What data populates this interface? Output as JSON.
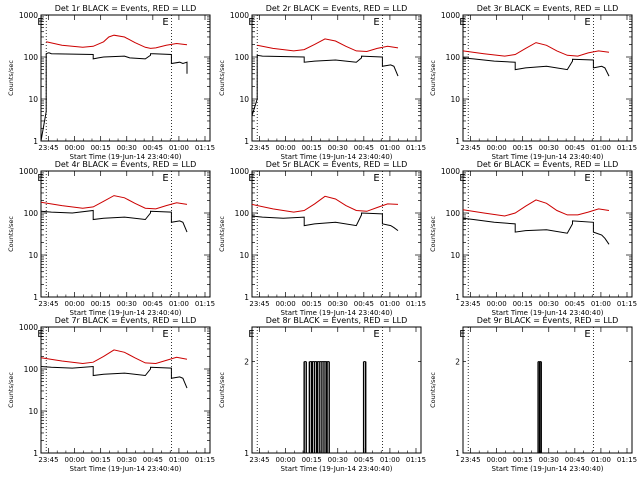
{
  "chart_data": [
    {
      "type": "line",
      "title": "Det 1r BLACK = Events, RED = LLD",
      "xlabel": "Start Time (19-Jun-14 23:40:40)",
      "ylabel": "Counts/sec",
      "xticks": [
        "23:45",
        "00:00",
        "00:15",
        "00:30",
        "00:45",
        "01:00",
        "01:15"
      ],
      "yticks": [
        "1",
        "10",
        "100",
        "1000"
      ],
      "yscale": "log",
      "ylim": [
        1,
        1000
      ],
      "markers": [
        {
          "label": "E",
          "t": 0.05
        },
        {
          "label": "E",
          "t": 1.25
        }
      ],
      "series": [
        {
          "color": "#000000",
          "x": [
            0.0,
            0.05,
            0.05,
            0.07,
            0.08,
            0.1,
            0.5,
            0.5,
            0.55,
            0.6,
            0.8,
            0.85,
            1.0,
            1.05,
            1.05,
            1.08,
            1.25,
            1.25,
            1.33,
            1.36,
            1.4,
            1.4
          ],
          "y": [
            1,
            5,
            120,
            125,
            125,
            120,
            115,
            90,
            95,
            100,
            105,
            95,
            90,
            110,
            120,
            120,
            115,
            70,
            75,
            70,
            75,
            40
          ]
        },
        {
          "color": "#cc0000",
          "x": [
            0.05,
            0.2,
            0.4,
            0.5,
            0.6,
            0.65,
            0.7,
            0.8,
            0.9,
            1.0,
            1.05,
            1.1,
            1.2,
            1.3,
            1.4
          ],
          "y": [
            230,
            190,
            170,
            180,
            230,
            300,
            330,
            300,
            220,
            170,
            160,
            165,
            190,
            210,
            195
          ]
        }
      ]
    },
    {
      "type": "line",
      "title": "Det 2r BLACK = Events, RED = LLD",
      "xlabel": "Start Time (19-Jun-14 23:40:40)",
      "ylabel": "Counts/sec",
      "xticks": [
        "23:45",
        "00:00",
        "00:15",
        "00:30",
        "00:45",
        "01:00",
        "01:15"
      ],
      "yticks": [
        "1",
        "10",
        "100",
        "1000"
      ],
      "yscale": "log",
      "ylim": [
        1,
        1000
      ],
      "markers": [
        {
          "label": "E",
          "t": 0.05
        },
        {
          "label": "E",
          "t": 1.25
        }
      ],
      "series": [
        {
          "color": "#000000",
          "x": [
            0.0,
            0.05,
            0.05,
            0.1,
            0.5,
            0.5,
            0.6,
            0.8,
            1.0,
            1.05,
            1.05,
            1.25,
            1.25,
            1.33,
            1.36,
            1.4
          ],
          "y": [
            4,
            10,
            110,
            105,
            100,
            75,
            80,
            85,
            75,
            95,
            105,
            100,
            60,
            65,
            60,
            35
          ]
        },
        {
          "color": "#cc0000",
          "x": [
            0.05,
            0.2,
            0.4,
            0.5,
            0.6,
            0.7,
            0.8,
            0.9,
            1.0,
            1.1,
            1.2,
            1.3,
            1.4
          ],
          "y": [
            190,
            160,
            140,
            150,
            200,
            270,
            240,
            180,
            140,
            135,
            160,
            180,
            165
          ]
        }
      ]
    },
    {
      "type": "line",
      "title": "Det 3r BLACK = Events, RED = LLD",
      "xlabel": "Start Time (19-Jun-14 23:40:40)",
      "ylabel": "Counts/sec",
      "xticks": [
        "23:45",
        "00:00",
        "00:15",
        "00:30",
        "00:45",
        "01:00",
        "01:15"
      ],
      "yticks": [
        "1",
        "10",
        "100",
        "1000"
      ],
      "yscale": "log",
      "ylim": [
        1,
        1000
      ],
      "markers": [
        {
          "label": "E",
          "t": 0.05
        },
        {
          "label": "E",
          "t": 1.25
        }
      ],
      "series": [
        {
          "color": "#000000",
          "x": [
            0.0,
            0.1,
            0.3,
            0.5,
            0.5,
            0.6,
            0.8,
            1.0,
            1.05,
            1.05,
            1.25,
            1.25,
            1.33,
            1.36,
            1.4
          ],
          "y": [
            95,
            90,
            80,
            75,
            50,
            55,
            60,
            50,
            80,
            88,
            85,
            55,
            60,
            55,
            35
          ]
        },
        {
          "color": "#cc0000",
          "x": [
            0.0,
            0.2,
            0.4,
            0.5,
            0.6,
            0.7,
            0.8,
            0.9,
            1.0,
            1.1,
            1.2,
            1.3,
            1.4
          ],
          "y": [
            140,
            120,
            105,
            115,
            160,
            220,
            190,
            140,
            110,
            105,
            125,
            140,
            130
          ]
        }
      ]
    },
    {
      "type": "line",
      "title": "Det 4r BLACK = Events, RED = LLD",
      "xlabel": "Start Time (19-Jun-14 23:40:40)",
      "ylabel": "Counts/sec",
      "xticks": [
        "23:45",
        "00:00",
        "00:15",
        "00:30",
        "00:45",
        "01:00",
        "01:15"
      ],
      "yticks": [
        "1",
        "10",
        "100",
        "1000"
      ],
      "yscale": "log",
      "ylim": [
        1,
        1000
      ],
      "markers": [
        {
          "label": "E",
          "t": 0.05
        },
        {
          "label": "E",
          "t": 1.25
        }
      ],
      "series": [
        {
          "color": "#000000",
          "x": [
            0.0,
            0.1,
            0.3,
            0.5,
            0.5,
            0.6,
            0.8,
            1.0,
            1.05,
            1.05,
            1.25,
            1.25,
            1.33,
            1.36,
            1.4
          ],
          "y": [
            110,
            105,
            100,
            115,
            70,
            75,
            80,
            70,
            100,
            110,
            105,
            60,
            65,
            60,
            35
          ]
        },
        {
          "color": "#cc0000",
          "x": [
            0.0,
            0.2,
            0.4,
            0.5,
            0.6,
            0.7,
            0.8,
            0.9,
            1.0,
            1.1,
            1.2,
            1.3,
            1.4
          ],
          "y": [
            180,
            150,
            130,
            140,
            190,
            260,
            230,
            170,
            130,
            125,
            150,
            175,
            160
          ]
        }
      ]
    },
    {
      "type": "line",
      "title": "Det 5r BLACK = Events, RED = LLD",
      "xlabel": "Start Time (19-Jun-14 23:40:40)",
      "ylabel": "Counts/sec",
      "xticks": [
        "23:45",
        "00:00",
        "00:15",
        "00:30",
        "00:45",
        "01:00",
        "01:15"
      ],
      "yticks": [
        "1",
        "10",
        "100",
        "1000"
      ],
      "yscale": "log",
      "ylim": [
        1,
        1000
      ],
      "markers": [
        {
          "label": "E",
          "t": 0.05
        },
        {
          "label": "E",
          "t": 1.25
        }
      ],
      "series": [
        {
          "color": "#000000",
          "x": [
            0.0,
            0.1,
            0.3,
            0.5,
            0.5,
            0.6,
            0.8,
            1.0,
            1.05,
            1.05,
            1.25,
            1.25,
            1.33,
            1.36,
            1.4
          ],
          "y": [
            85,
            80,
            75,
            80,
            50,
            55,
            60,
            50,
            90,
            100,
            95,
            55,
            50,
            45,
            38
          ]
        },
        {
          "color": "#cc0000",
          "x": [
            0.0,
            0.2,
            0.4,
            0.5,
            0.6,
            0.7,
            0.8,
            0.9,
            1.0,
            1.1,
            1.2,
            1.3,
            1.4
          ],
          "y": [
            160,
            125,
            105,
            115,
            165,
            250,
            215,
            150,
            115,
            110,
            135,
            165,
            160
          ]
        }
      ]
    },
    {
      "type": "line",
      "title": "Det 6r BLACK = Events, RED = LLD",
      "xlabel": "Start Time (19-Jun-14 23:40:40)",
      "ylabel": "Counts/sec",
      "xticks": [
        "23:45",
        "00:00",
        "00:15",
        "00:30",
        "00:45",
        "01:00",
        "01:15"
      ],
      "yticks": [
        "1",
        "10",
        "100",
        "1000"
      ],
      "yscale": "log",
      "ylim": [
        1,
        1000
      ],
      "markers": [
        {
          "label": "E",
          "t": 0.05
        },
        {
          "label": "E",
          "t": 1.25
        }
      ],
      "series": [
        {
          "color": "#000000",
          "x": [
            0.0,
            0.1,
            0.3,
            0.5,
            0.5,
            0.6,
            0.8,
            1.0,
            1.05,
            1.05,
            1.25,
            1.25,
            1.33,
            1.36,
            1.4
          ],
          "y": [
            75,
            70,
            60,
            55,
            35,
            38,
            40,
            33,
            55,
            65,
            60,
            35,
            30,
            25,
            18
          ]
        },
        {
          "color": "#cc0000",
          "x": [
            0.0,
            0.2,
            0.4,
            0.5,
            0.6,
            0.7,
            0.8,
            0.9,
            1.0,
            1.1,
            1.2,
            1.3,
            1.4
          ],
          "y": [
            120,
            100,
            85,
            100,
            145,
            205,
            170,
            115,
            90,
            90,
            105,
            125,
            115
          ]
        }
      ]
    },
    {
      "type": "line",
      "title": "Det 7r BLACK = Events, RED = LLD",
      "xlabel": "Start Time (19-Jun-14 23:40:40)",
      "ylabel": "Counts/sec",
      "xticks": [
        "23:45",
        "00:00",
        "00:15",
        "00:30",
        "00:45",
        "01:00",
        "01:15"
      ],
      "yticks": [
        "1",
        "10",
        "100",
        "1000"
      ],
      "yscale": "log",
      "ylim": [
        1,
        1000
      ],
      "markers": [
        {
          "label": "E",
          "t": 0.05
        },
        {
          "label": "E",
          "t": 1.25
        }
      ],
      "series": [
        {
          "color": "#000000",
          "x": [
            0.0,
            0.1,
            0.3,
            0.5,
            0.5,
            0.6,
            0.8,
            1.0,
            1.05,
            1.05,
            1.25,
            1.25,
            1.33,
            1.36,
            1.4
          ],
          "y": [
            115,
            110,
            105,
            115,
            70,
            75,
            80,
            70,
            100,
            110,
            105,
            60,
            65,
            60,
            35
          ]
        },
        {
          "color": "#cc0000",
          "x": [
            0.0,
            0.2,
            0.4,
            0.5,
            0.6,
            0.7,
            0.8,
            0.9,
            1.0,
            1.1,
            1.2,
            1.3,
            1.4
          ],
          "y": [
            185,
            155,
            135,
            145,
            200,
            285,
            250,
            185,
            140,
            135,
            160,
            190,
            170
          ]
        }
      ]
    },
    {
      "type": "line",
      "title": "Det 8r BLACK = Events, RED = LLD",
      "xlabel": "Start Time (19-Jun-14 23:40:40)",
      "ylabel": "Counts/sec",
      "xticks": [
        "23:45",
        "00:00",
        "00:15",
        "00:30",
        "00:45",
        "01:00",
        "01:15"
      ],
      "yticks": [
        "1",
        "2"
      ],
      "yscale": "log",
      "ylim": [
        1,
        2.6
      ],
      "markers": [
        {
          "label": "E",
          "t": 0.05
        },
        {
          "label": "E",
          "t": 1.25
        }
      ],
      "bursts": [
        0.5,
        0.52,
        0.55,
        0.57,
        0.58,
        0.6,
        0.62,
        0.63,
        0.65,
        0.67,
        0.69,
        0.71,
        0.72,
        0.74,
        1.07,
        1.09
      ],
      "burst_value": 2,
      "series": []
    },
    {
      "type": "line",
      "title": "Det 9r BLACK = Events, RED = LLD",
      "xlabel": "Start Time (19-Jun-14 23:40:40)",
      "ylabel": "Counts/sec",
      "xticks": [
        "23:45",
        "00:00",
        "00:15",
        "00:30",
        "00:45",
        "01:00",
        "01:15"
      ],
      "yticks": [
        "1",
        "2"
      ],
      "yscale": "log",
      "ylim": [
        1,
        2.6
      ],
      "markers": [
        {
          "label": "E",
          "t": 0.05
        },
        {
          "label": "E",
          "t": 1.25
        }
      ],
      "bursts": [
        0.72,
        0.735,
        0.75
      ],
      "burst_value": 2,
      "series": []
    }
  ]
}
